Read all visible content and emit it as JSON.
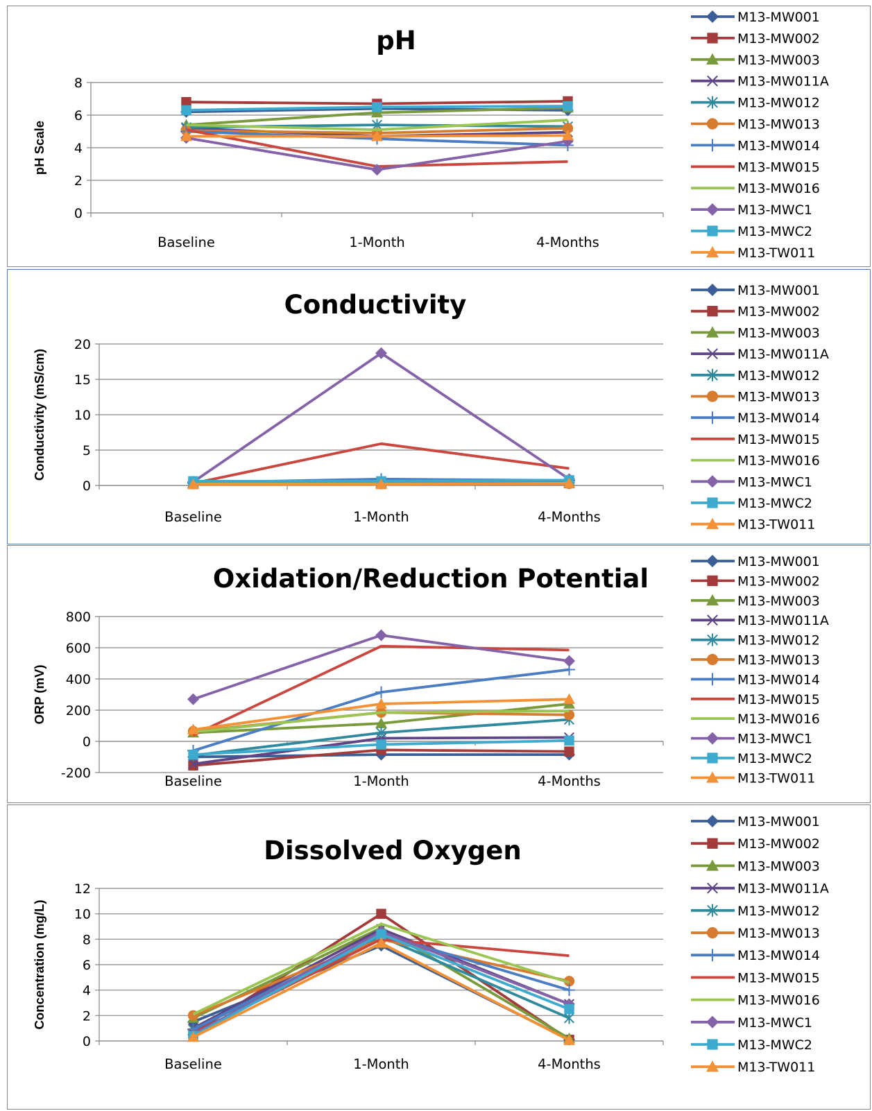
{
  "chart_data": [
    {
      "type": "line",
      "title": "pH",
      "ylabel": "pH Scale",
      "xlabel": "",
      "categories": [
        "Baseline",
        "1-Month",
        "4-Months"
      ],
      "ylim": [
        0,
        8
      ],
      "yticks": [
        0,
        2,
        4,
        6,
        8
      ],
      "grid": true,
      "legend": "right",
      "series": [
        {
          "name": "M13-MW001",
          "values": [
            6.2,
            6.4,
            6.3
          ]
        },
        {
          "name": "M13-MW002",
          "values": [
            6.8,
            6.7,
            6.85
          ]
        },
        {
          "name": "M13-MW003",
          "values": [
            5.4,
            6.15,
            6.45
          ]
        },
        {
          "name": "M13-MW011A",
          "values": [
            5.2,
            4.7,
            4.95
          ]
        },
        {
          "name": "M13-MW012",
          "values": [
            5.25,
            5.4,
            5.3
          ]
        },
        {
          "name": "M13-MW013",
          "values": [
            5.05,
            4.9,
            5.2
          ]
        },
        {
          "name": "M13-MW014",
          "values": [
            5.0,
            4.55,
            4.15
          ]
        },
        {
          "name": "M13-MW015",
          "values": [
            5.1,
            2.85,
            3.15
          ]
        },
        {
          "name": "M13-MW016",
          "values": [
            5.4,
            5.1,
            5.7
          ]
        },
        {
          "name": "M13-MWC1",
          "values": [
            4.6,
            2.65,
            4.4
          ]
        },
        {
          "name": "M13-MWC2",
          "values": [
            6.3,
            6.5,
            6.55
          ]
        },
        {
          "name": "M13-TW011",
          "values": [
            4.7,
            4.7,
            4.75
          ]
        }
      ]
    },
    {
      "type": "line",
      "title": "Conductivity",
      "ylabel": "Conductivity (mS/cm)",
      "xlabel": "",
      "categories": [
        "Baseline",
        "1-Month",
        "4-Months"
      ],
      "ylim": [
        0,
        20
      ],
      "yticks": [
        0,
        5,
        10,
        15,
        20
      ],
      "grid": true,
      "legend": "right",
      "series": [
        {
          "name": "M13-MW001",
          "values": [
            0.3,
            0.35,
            0.4
          ]
        },
        {
          "name": "M13-MW002",
          "values": [
            0.2,
            0.25,
            0.3
          ]
        },
        {
          "name": "M13-MW003",
          "values": [
            0.3,
            0.3,
            0.35
          ]
        },
        {
          "name": "M13-MW011A",
          "values": [
            0.4,
            0.45,
            0.4
          ]
        },
        {
          "name": "M13-MW012",
          "values": [
            0.5,
            0.55,
            0.5
          ]
        },
        {
          "name": "M13-MW013",
          "values": [
            0.2,
            0.2,
            0.25
          ]
        },
        {
          "name": "M13-MW014",
          "values": [
            0.4,
            0.9,
            0.7
          ]
        },
        {
          "name": "M13-MW015",
          "values": [
            0.3,
            5.9,
            2.4
          ]
        },
        {
          "name": "M13-MW016",
          "values": [
            0.2,
            0.2,
            0.3
          ]
        },
        {
          "name": "M13-MWC1",
          "values": [
            0.5,
            18.7,
            0.9
          ]
        },
        {
          "name": "M13-MWC2",
          "values": [
            0.6,
            0.6,
            0.75
          ]
        },
        {
          "name": "M13-TW011",
          "values": [
            0.15,
            0.15,
            0.3
          ]
        }
      ]
    },
    {
      "type": "line",
      "title": "Oxidation/Reduction Potential",
      "ylabel": "ORP (mV)",
      "xlabel": "",
      "categories": [
        "Baseline",
        "1-Month",
        "4-Months"
      ],
      "ylim": [
        -200,
        800
      ],
      "yticks": [
        -200,
        0,
        200,
        400,
        600,
        800
      ],
      "grid": true,
      "legend": "right",
      "series": [
        {
          "name": "M13-MW001",
          "values": [
            -100,
            -85,
            -85
          ]
        },
        {
          "name": "M13-MW002",
          "values": [
            -155,
            -55,
            -65
          ]
        },
        {
          "name": "M13-MW003",
          "values": [
            55,
            115,
            240
          ]
        },
        {
          "name": "M13-MW011A",
          "values": [
            -145,
            20,
            25
          ]
        },
        {
          "name": "M13-MW012",
          "values": [
            -90,
            55,
            140
          ]
        },
        {
          "name": "M13-MW013",
          "values": [
            65,
            185,
            170
          ]
        },
        {
          "name": "M13-MW014",
          "values": [
            -60,
            315,
            460
          ]
        },
        {
          "name": "M13-MW015",
          "values": [
            40,
            610,
            585
          ]
        },
        {
          "name": "M13-MW016",
          "values": [
            60,
            185,
            195
          ]
        },
        {
          "name": "M13-MWC1",
          "values": [
            270,
            680,
            515
          ]
        },
        {
          "name": "M13-MWC2",
          "values": [
            -85,
            -20,
            5
          ]
        },
        {
          "name": "M13-TW011",
          "values": [
            75,
            240,
            270
          ]
        }
      ]
    },
    {
      "type": "line",
      "title": "Dissolved Oxygen",
      "ylabel": "Concentration (mg/L)",
      "xlabel": "",
      "categories": [
        "Baseline",
        "1-Month",
        "4-Months"
      ],
      "ylim": [
        0,
        12
      ],
      "yticks": [
        0,
        2,
        4,
        6,
        8,
        10,
        12
      ],
      "grid": true,
      "legend": "right",
      "series": [
        {
          "name": "M13-MW001",
          "values": [
            1.5,
            7.5,
            0.1
          ]
        },
        {
          "name": "M13-MW002",
          "values": [
            0.6,
            10.0,
            0.1
          ]
        },
        {
          "name": "M13-MW003",
          "values": [
            1.8,
            8.9,
            0.2
          ]
        },
        {
          "name": "M13-MW011A",
          "values": [
            1.0,
            8.8,
            2.9
          ]
        },
        {
          "name": "M13-MW012",
          "values": [
            0.9,
            8.2,
            1.8
          ]
        },
        {
          "name": "M13-MW013",
          "values": [
            2.0,
            8.0,
            4.7
          ]
        },
        {
          "name": "M13-MW014",
          "values": [
            0.9,
            8.4,
            4.0
          ]
        },
        {
          "name": "M13-MW015",
          "values": [
            0.6,
            8.0,
            6.7
          ]
        },
        {
          "name": "M13-MW016",
          "values": [
            2.1,
            9.2,
            4.6
          ]
        },
        {
          "name": "M13-MWC1",
          "values": [
            0.5,
            8.6,
            2.9
          ]
        },
        {
          "name": "M13-MWC2",
          "values": [
            0.4,
            8.4,
            2.5
          ]
        },
        {
          "name": "M13-TW011",
          "values": [
            0.3,
            7.7,
            0.05
          ]
        }
      ]
    }
  ],
  "series_styles": [
    {
      "color": "#3A5E95",
      "marker": "diamond"
    },
    {
      "color": "#A23B3A",
      "marker": "square"
    },
    {
      "color": "#789A3B",
      "marker": "triangle"
    },
    {
      "color": "#5E4585",
      "marker": "x"
    },
    {
      "color": "#2F8A9E",
      "marker": "star"
    },
    {
      "color": "#D77B2E",
      "marker": "circle"
    },
    {
      "color": "#4A7DC4",
      "marker": "plus"
    },
    {
      "color": "#C9473F",
      "marker": "dash"
    },
    {
      "color": "#9BC553",
      "marker": "dash"
    },
    {
      "color": "#8462A8",
      "marker": "diamond"
    },
    {
      "color": "#3DAACF",
      "marker": "square"
    },
    {
      "color": "#F39136",
      "marker": "triangle"
    }
  ],
  "colors": {
    "frame": "#868686",
    "selected_frame": "#4A7EBB",
    "grid": "#868686",
    "axis": "#868686"
  }
}
